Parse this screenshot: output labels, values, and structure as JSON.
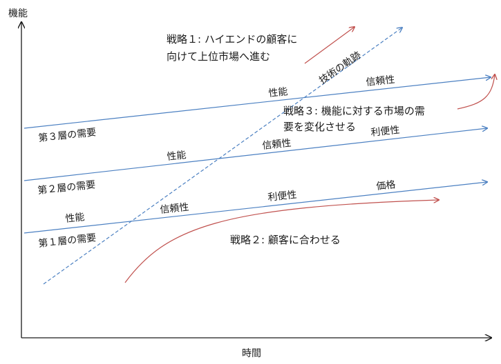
{
  "axes": {
    "y_label": "機能",
    "x_label": "時間"
  },
  "tiers": [
    {
      "label": "第１層の需要",
      "attributes": [
        "性能",
        "信頼性",
        "利便性",
        "価格"
      ]
    },
    {
      "label": "第２層の需要",
      "attributes": [
        "性能",
        "信頼性",
        "利便性"
      ]
    },
    {
      "label": "第３層の需要",
      "attributes": [
        "性能",
        "信頼性"
      ]
    }
  ],
  "technology": {
    "label": "技術の軌跡"
  },
  "strategies": {
    "s1": {
      "line1": "戦略１: ハイエンドの顧客に",
      "line2": "向けて上位市場へ進む"
    },
    "s2": {
      "line1": "戦略２: 顧客に合わせる"
    },
    "s3": {
      "line1": "戦略３: 機能に対する市場の需",
      "line2": "要を変化させる"
    }
  },
  "colors": {
    "axis": "#1a1a1a",
    "demand_line": "#4a7fc1",
    "technology_line": "#4a7fc1",
    "strategy_arrow": "#c0504d",
    "text": "#1a1a1a"
  }
}
